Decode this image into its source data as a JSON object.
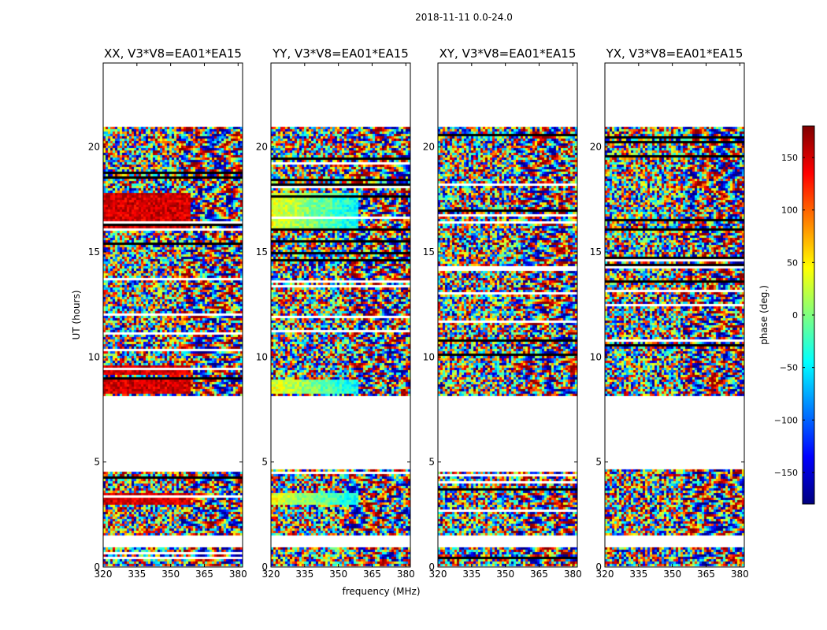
{
  "figure": {
    "suptitle": "2018-11-11 0.0-24.0",
    "xlabel": "frequency (MHz)",
    "ylabel": "UT (hours)",
    "colorbar_label": "phase (deg.)",
    "colormap": "jet",
    "background": "#ffffff"
  },
  "chart_data": {
    "type": "heatmap",
    "description_free": true,
    "xlim": [
      320,
      382
    ],
    "ylim": [
      0,
      24
    ],
    "xticks": [
      320,
      335,
      350,
      365,
      380
    ],
    "yticks": [
      0,
      5,
      10,
      15,
      20
    ],
    "clim": [
      -180,
      180
    ],
    "colorbar_ticks": [
      150,
      100,
      50,
      0,
      -50,
      -100,
      -150
    ],
    "data_time_ranges_hours": [
      [
        0.0,
        0.9
      ],
      [
        1.5,
        4.7
      ],
      [
        8.1,
        21.0
      ]
    ],
    "blank_time_ranges_hours": [
      [
        0.9,
        1.5
      ],
      [
        4.7,
        8.1
      ],
      [
        21.0,
        24.0
      ]
    ],
    "panels": [
      {
        "title": "XX, V3*V8=EA01*EA15",
        "polarization": "XX",
        "baseline": "V3*V8=EA01*EA15",
        "coherent_phase_bands": [
          {
            "t": [
              16.0,
              17.8
            ],
            "phase_deg": 150
          },
          {
            "t": [
              8.2,
              8.9
            ],
            "phase_deg": 150
          },
          {
            "t": [
              9.2,
              9.6
            ],
            "phase_deg": 150
          },
          {
            "t": [
              3.0,
              3.5
            ],
            "phase_deg": 150
          }
        ]
      },
      {
        "title": "YY, V3*V8=EA01*EA15",
        "polarization": "YY",
        "baseline": "V3*V8=EA01*EA15",
        "coherent_phase_bands": [
          {
            "t": [
              16.0,
              17.8
            ],
            "phase_deg": 40
          },
          {
            "t": [
              8.2,
              8.9
            ],
            "phase_deg": 40
          },
          {
            "t": [
              3.0,
              3.5
            ],
            "phase_deg": 40
          }
        ]
      },
      {
        "title": "XY, V3*V8=EA01*EA15",
        "polarization": "XY",
        "baseline": "V3*V8=EA01*EA15",
        "coherent_phase_bands": []
      },
      {
        "title": "YX, V3*V8=EA01*EA15",
        "polarization": "YX",
        "baseline": "V3*V8=EA01*EA15",
        "coherent_phase_bands": []
      }
    ]
  }
}
